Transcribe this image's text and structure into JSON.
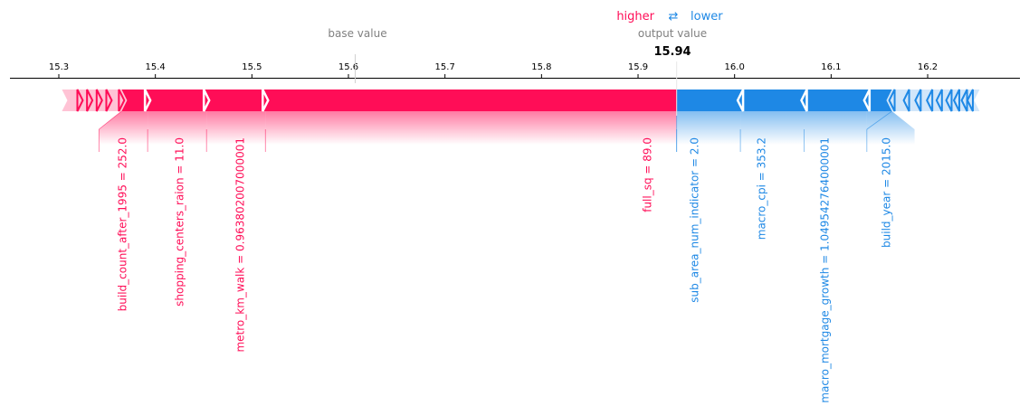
{
  "chart_data": {
    "type": "force",
    "legend": {
      "higher": "higher",
      "arrows": "⇄",
      "lower": "lower"
    },
    "base_value_label": "base value",
    "output_value_label": "output value",
    "output_value": 15.94,
    "output_value_text": "15.94",
    "base_value": 15.607,
    "x_range": [
      15.27,
      16.29
    ],
    "x_ticks": [
      "15.3",
      "15.4",
      "15.5",
      "15.6",
      "15.7",
      "15.8",
      "15.9",
      "16.0",
      "16.1",
      "16.2"
    ],
    "x_tick_values": [
      15.3,
      15.4,
      15.5,
      15.6,
      15.7,
      15.8,
      15.9,
      16.0,
      16.1,
      16.2
    ],
    "colors": {
      "positive": "#ff0d57",
      "negative": "#1e88e5",
      "positive_light": "#ffc3d5",
      "negative_light": "#d1e6fa",
      "axis": "#000000",
      "muted": "#808080"
    },
    "positive_features": [
      {
        "label": "build_count_after_1995 = 252.0",
        "start": 15.365,
        "end": 15.392
      },
      {
        "label": "shopping_centers_raion = 11.0",
        "start": 15.392,
        "end": 15.453
      },
      {
        "label": "metro_km_walk = 0.963802007000001",
        "start": 15.453,
        "end": 15.514
      },
      {
        "label": "full_sq = 89.0",
        "start": 15.514,
        "end": 15.94
      }
    ],
    "negative_features": [
      {
        "label": "sub_area_num_indicator = 2.0",
        "start": 15.94,
        "end": 16.006
      },
      {
        "label": "macro_cpi = 353.2",
        "start": 16.006,
        "end": 16.072
      },
      {
        "label": "macro_mortgage_growth = 1.049542764000001",
        "start": 16.072,
        "end": 16.137
      },
      {
        "label": "build_year = 2015.0",
        "start": 16.137,
        "end": 16.163
      }
    ],
    "positive_tail": [
      15.307,
      15.322,
      15.332,
      15.342,
      15.352,
      15.365
    ],
    "negative_tail": [
      16.163,
      16.178,
      16.19,
      16.202,
      16.212,
      16.222,
      16.23,
      16.238,
      16.244,
      16.25
    ]
  }
}
